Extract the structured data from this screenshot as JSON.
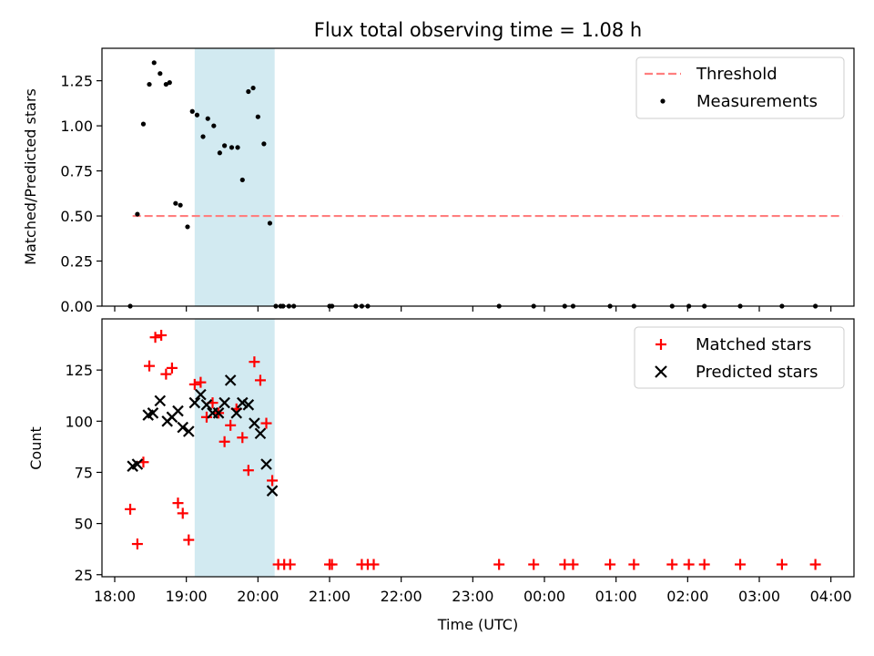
{
  "chart_data": [
    {
      "type": "scatter",
      "title": "Flux total observing time = 1.08 h",
      "xlabel": "",
      "ylabel": "Matched/Predicted stars",
      "ylim": [
        0,
        1.43
      ],
      "xlim": [
        "18:00",
        "04:30"
      ],
      "y_ticks": [
        "0.00",
        "0.25",
        "0.50",
        "0.75",
        "1.00",
        "1.25"
      ],
      "legend_position": "top-right",
      "grid": false,
      "shaded_interval": {
        "x": [
          "19:07",
          "20:14"
        ],
        "color": "#add8e6"
      },
      "threshold": {
        "name": "Threshold",
        "y": 0.5,
        "x": [
          "18:15",
          "04:10"
        ],
        "color": "#ff7f7f",
        "style": "dashed"
      },
      "series": [
        {
          "name": "Measurements",
          "color": "#000000",
          "marker": "dot",
          "x": [
            "18:13",
            "18:19",
            "18:24",
            "18:29",
            "18:33",
            "18:38",
            "18:43",
            "18:46",
            "18:51",
            "18:55",
            "19:01",
            "19:05",
            "19:09",
            "19:14",
            "19:18",
            "19:23",
            "19:28",
            "19:32",
            "19:38",
            "19:43",
            "19:47",
            "19:52",
            "19:56",
            "20:00",
            "20:05",
            "20:10",
            "20:15",
            "20:19",
            "20:21",
            "20:26",
            "20:30",
            "21:00",
            "21:02",
            "21:22",
            "21:27",
            "21:32",
            "23:22",
            "23:51",
            "00:17",
            "00:24",
            "00:55",
            "01:15",
            "01:47",
            "02:01",
            "02:14",
            "02:44",
            "03:19",
            "03:47"
          ],
          "y": [
            0.0,
            0.51,
            1.01,
            1.23,
            1.35,
            1.29,
            1.23,
            1.24,
            0.57,
            0.56,
            0.44,
            1.08,
            1.06,
            0.94,
            1.04,
            1.0,
            0.85,
            0.89,
            0.88,
            0.88,
            0.7,
            1.19,
            1.21,
            1.05,
            0.9,
            0.46,
            0.0,
            0.0,
            0.0,
            0.0,
            0.0,
            0.0,
            0.0,
            0.0,
            0.0,
            0.0,
            0.0,
            0.0,
            0.0,
            0.0,
            0.0,
            0.0,
            0.0,
            0.0,
            0.0,
            0.0,
            0.0,
            0.0
          ]
        }
      ]
    },
    {
      "type": "scatter",
      "title": "",
      "xlabel": "Time (UTC)",
      "ylabel": "Count",
      "ylim": [
        24,
        150
      ],
      "xlim": [
        "18:00",
        "04:30"
      ],
      "x_ticks": [
        "18:00",
        "19:00",
        "20:00",
        "21:00",
        "22:00",
        "23:00",
        "00:00",
        "01:00",
        "02:00",
        "03:00",
        "04:00"
      ],
      "y_ticks": [
        "25",
        "50",
        "75",
        "100",
        "125"
      ],
      "legend_position": "top-right",
      "grid": false,
      "shaded_interval": {
        "x": [
          "19:07",
          "20:14"
        ],
        "color": "#add8e6"
      },
      "series": [
        {
          "name": "Matched stars",
          "color": "#ff0000",
          "marker": "plus",
          "x": [
            "18:13",
            "18:19",
            "18:24",
            "18:29",
            "18:34",
            "18:39",
            "18:43",
            "18:48",
            "18:53",
            "18:57",
            "19:02",
            "19:07",
            "19:12",
            "19:17",
            "19:22",
            "19:27",
            "19:32",
            "19:37",
            "19:42",
            "19:47",
            "19:52",
            "19:57",
            "20:02",
            "20:07",
            "20:12",
            "20:17",
            "20:22",
            "20:27",
            "21:00",
            "21:02",
            "21:27",
            "21:32",
            "21:37",
            "23:22",
            "23:51",
            "00:17",
            "00:24",
            "00:55",
            "01:15",
            "01:47",
            "02:01",
            "02:14",
            "02:44",
            "03:19",
            "03:47"
          ],
          "y": [
            57,
            40,
            80,
            127,
            141,
            142,
            123,
            126,
            60,
            55,
            42,
            118,
            119,
            102,
            109,
            104,
            90,
            98,
            106,
            92,
            76,
            129,
            120,
            99,
            71,
            30,
            30,
            30,
            30,
            30,
            30,
            30,
            30,
            30,
            30,
            30,
            30,
            30,
            30,
            30,
            30,
            30,
            30,
            30,
            30
          ]
        },
        {
          "name": "Predicted stars",
          "color": "#000000",
          "marker": "x",
          "x": [
            "18:15",
            "18:19",
            "18:28",
            "18:32",
            "18:38",
            "18:44",
            "18:48",
            "18:53",
            "18:57",
            "19:02",
            "19:07",
            "19:12",
            "19:17",
            "19:22",
            "19:27",
            "19:32",
            "19:37",
            "19:42",
            "19:47",
            "19:52",
            "19:57",
            "20:02",
            "20:07",
            "20:12",
            "20:17"
          ],
          "y": [
            78,
            79,
            103,
            104,
            110,
            100,
            102,
            105,
            97,
            95,
            109,
            113,
            108,
            104,
            104,
            109,
            120,
            104,
            109,
            108,
            99,
            94,
            79,
            66,
            null
          ]
        }
      ]
    }
  ]
}
